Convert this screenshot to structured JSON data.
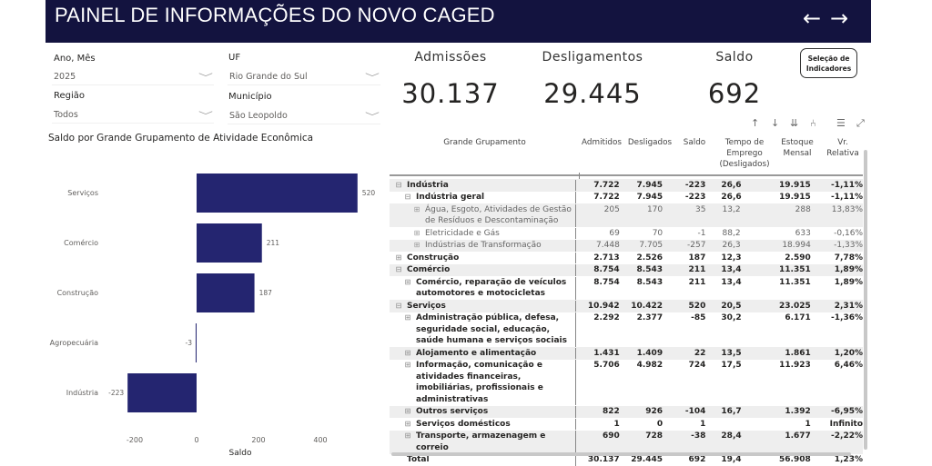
{
  "header": {
    "title": "PAINEL DE INFORMAÇÕES DO NOVO CAGED",
    "back": "←",
    "forward": "→"
  },
  "filters": {
    "ano_mes": {
      "label": "Ano, Mês",
      "value": "2025"
    },
    "uf": {
      "label": "UF",
      "value": "Rio Grande do Sul"
    },
    "regiao": {
      "label": "Região",
      "value": "Todos"
    },
    "municipio": {
      "label": "Município",
      "value": "São Leopoldo"
    },
    "chevron": "﹀"
  },
  "kpis": {
    "admissoes": {
      "label": "Admissões",
      "value": "30.137"
    },
    "desligamentos": {
      "label": "Desligamentos",
      "value": "29.445"
    },
    "saldo": {
      "label": "Saldo",
      "value": "692"
    }
  },
  "selection_button": {
    "line1": "Seleção de",
    "line2": "Indicadores"
  },
  "toolbar": {
    "up": "↑",
    "down": "↓",
    "drill_all": "⇊",
    "expand": "⑃",
    "filter": "☰",
    "focus": "⤢"
  },
  "chart_data": {
    "type": "bar",
    "orientation": "horizontal",
    "title": "Saldo por Grande Grupamento de Atividade Econômica",
    "categories": [
      "Serviços",
      "Comércio",
      "Construção",
      "Agropecuária",
      "Indústria"
    ],
    "values": [
      520,
      211,
      187,
      -3,
      -223
    ],
    "xlabel": "Saldo",
    "xlim": [
      -230,
      530
    ],
    "xticks": [
      -200,
      0,
      200,
      400
    ],
    "color": "#242570"
  },
  "table": {
    "headers": [
      "Grande Grupamento",
      "Admitidos",
      "Desligados",
      "Saldo",
      "Tempo de Emprego (Desligados)",
      "Estoque Mensal",
      "Vr. Relativa"
    ],
    "rows": [
      {
        "name": "Indústria",
        "level": 0,
        "exp": "⊟",
        "vals": [
          "7.722",
          "7.945",
          "-223",
          "26,6",
          "19.915",
          "-1,11%"
        ]
      },
      {
        "name": "Indústria geral",
        "level": 1,
        "exp": "⊟",
        "vals": [
          "7.722",
          "7.945",
          "-223",
          "26,6",
          "19.915",
          "-1,11%"
        ]
      },
      {
        "name": "Água, Esgoto, Atividades de Gestão de Resíduos e Descontaminação",
        "level": 2,
        "exp": "⊞",
        "vals": [
          "205",
          "170",
          "35",
          "13,2",
          "288",
          "13,83%"
        ]
      },
      {
        "name": "Eletricidade e Gás",
        "level": 2,
        "exp": "⊞",
        "vals": [
          "69",
          "70",
          "-1",
          "88,2",
          "633",
          "-0,16%"
        ]
      },
      {
        "name": "Indústrias de Transformação",
        "level": 2,
        "exp": "⊞",
        "vals": [
          "7.448",
          "7.705",
          "-257",
          "26,3",
          "18.994",
          "-1,33%"
        ]
      },
      {
        "name": "Construção",
        "level": 0,
        "exp": "⊞",
        "vals": [
          "2.713",
          "2.526",
          "187",
          "12,3",
          "2.590",
          "7,78%"
        ]
      },
      {
        "name": "Comércio",
        "level": 0,
        "exp": "⊟",
        "vals": [
          "8.754",
          "8.543",
          "211",
          "13,4",
          "11.351",
          "1,89%"
        ]
      },
      {
        "name": "Comércio, reparação de veículos automotores e motocicletas",
        "level": 1,
        "exp": "⊞",
        "vals": [
          "8.754",
          "8.543",
          "211",
          "13,4",
          "11.351",
          "1,89%"
        ]
      },
      {
        "name": "Serviços",
        "level": 0,
        "exp": "⊟",
        "vals": [
          "10.942",
          "10.422",
          "520",
          "20,5",
          "23.025",
          "2,31%"
        ]
      },
      {
        "name": "Administração pública, defesa, seguridade social, educação, saúde humana e serviços sociais",
        "level": 1,
        "exp": "⊞",
        "vals": [
          "2.292",
          "2.377",
          "-85",
          "30,2",
          "6.171",
          "-1,36%"
        ]
      },
      {
        "name": "Alojamento e alimentação",
        "level": 1,
        "exp": "⊞",
        "vals": [
          "1.431",
          "1.409",
          "22",
          "13,5",
          "1.861",
          "1,20%"
        ]
      },
      {
        "name": "Informação, comunicação e atividades financeiras, imobiliárias, profissionais e administrativas",
        "level": 1,
        "exp": "⊞",
        "vals": [
          "5.706",
          "4.982",
          "724",
          "17,5",
          "11.923",
          "6,46%"
        ]
      },
      {
        "name": "Outros serviços",
        "level": 1,
        "exp": "⊞",
        "vals": [
          "822",
          "926",
          "-104",
          "16,7",
          "1.392",
          "-6,95%"
        ]
      },
      {
        "name": "Serviços domésticos",
        "level": 1,
        "exp": "⊞",
        "vals": [
          "1",
          "0",
          "1",
          "",
          "1",
          "Infinito"
        ]
      },
      {
        "name": "Transporte, armazenagem e correio",
        "level": 1,
        "exp": "⊞",
        "vals": [
          "690",
          "728",
          "-38",
          "28,4",
          "1.677",
          "-2,22%"
        ]
      },
      {
        "name": "Total",
        "level": 0,
        "exp": "",
        "vals": [
          "30.137",
          "29.445",
          "692",
          "19,4",
          "56.908",
          "1,23%"
        ]
      }
    ]
  }
}
